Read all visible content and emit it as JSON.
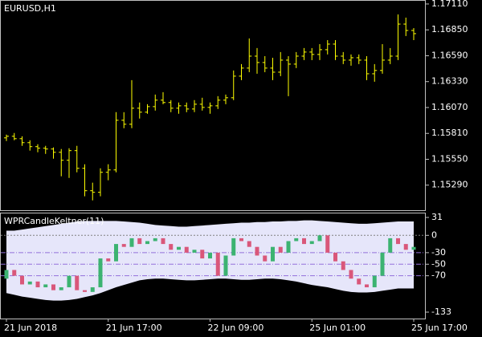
{
  "chart_data": [
    {
      "type": "ohlc",
      "title": "EURUSD,H1",
      "color": "#ffff00",
      "categories": [
        "21 Jun 2018",
        null,
        null,
        null,
        null,
        null,
        null,
        null,
        null,
        null,
        null,
        null,
        null,
        "21 Jun 17:00",
        null,
        null,
        null,
        null,
        null,
        null,
        null,
        null,
        null,
        null,
        null,
        null,
        "22 Jun 09:00",
        null,
        null,
        null,
        null,
        null,
        null,
        null,
        null,
        null,
        null,
        null,
        null,
        "25 Jun 01:00",
        null,
        null,
        null,
        null,
        null,
        null,
        null,
        null,
        null,
        null,
        null,
        null,
        "25 Jun 17:00"
      ],
      "open": [
        1.15765,
        1.15781,
        1.15757,
        1.15717,
        1.15677,
        1.15661,
        1.15653,
        1.1562,
        1.1554,
        1.15637,
        1.15459,
        1.15234,
        1.15218,
        1.15419,
        1.15443,
        1.15942,
        1.15902,
        1.16063,
        1.16023,
        1.16079,
        1.16144,
        1.1612,
        1.16063,
        1.16087,
        1.16055,
        1.16103,
        1.16071,
        1.16087,
        1.16144,
        1.16168,
        1.16385,
        1.16466,
        1.16586,
        1.16522,
        1.16466,
        1.16425,
        1.16546,
        1.16506,
        1.16586,
        1.16627,
        1.16603,
        1.16651,
        1.16707,
        1.16586,
        1.16546,
        1.1657,
        1.16546,
        1.16409,
        1.16442,
        1.16546,
        1.16586,
        1.16908,
        1.16844
      ],
      "high": [
        1.15798,
        1.15814,
        1.15781,
        1.15741,
        1.15701,
        1.15685,
        1.15669,
        1.15653,
        1.15661,
        1.15685,
        1.155,
        1.15315,
        1.15459,
        1.155,
        1.16023,
        1.16023,
        1.16345,
        1.1612,
        1.16103,
        1.162,
        1.16224,
        1.16144,
        1.1612,
        1.1612,
        1.16144,
        1.16168,
        1.1612,
        1.16184,
        1.162,
        1.16442,
        1.16506,
        1.16764,
        1.16667,
        1.16586,
        1.1657,
        1.16627,
        1.16586,
        1.16627,
        1.16667,
        1.16667,
        1.16707,
        1.16747,
        1.16747,
        1.16627,
        1.16603,
        1.16603,
        1.16586,
        1.16506,
        1.16707,
        1.16667,
        1.17005,
        1.16973,
        1.16868
      ],
      "low": [
        1.15733,
        1.15741,
        1.15685,
        1.15637,
        1.1562,
        1.15604,
        1.15556,
        1.15379,
        1.15363,
        1.15419,
        1.15178,
        1.15137,
        1.15178,
        1.15339,
        1.15419,
        1.15862,
        1.15862,
        1.15959,
        1.16007,
        1.16039,
        1.16103,
        1.16023,
        1.16007,
        1.16023,
        1.16023,
        1.16039,
        1.16007,
        1.16055,
        1.16103,
        1.16144,
        1.16345,
        1.16425,
        1.16409,
        1.16425,
        1.16345,
        1.16385,
        1.16184,
        1.16466,
        1.16546,
        1.16546,
        1.16546,
        1.16603,
        1.16546,
        1.16506,
        1.1649,
        1.16506,
        1.16345,
        1.16329,
        1.16409,
        1.16506,
        1.16546,
        1.16788,
        1.16747
      ],
      "close": [
        1.15781,
        1.15757,
        1.15717,
        1.15677,
        1.15661,
        1.15653,
        1.1562,
        1.1554,
        1.15637,
        1.15459,
        1.15234,
        1.15218,
        1.15419,
        1.15443,
        1.15942,
        1.15902,
        1.16063,
        1.16023,
        1.16079,
        1.16144,
        1.1612,
        1.16063,
        1.16087,
        1.16055,
        1.16103,
        1.16071,
        1.16087,
        1.16144,
        1.16168,
        1.16385,
        1.16466,
        1.16586,
        1.16522,
        1.16466,
        1.16425,
        1.16546,
        1.16506,
        1.16586,
        1.16627,
        1.16603,
        1.16651,
        1.16707,
        1.16586,
        1.16546,
        1.1657,
        1.16546,
        1.16409,
        1.16442,
        1.16546,
        1.16586,
        1.16908,
        1.16844,
        1.16812
      ],
      "ylim": [
        1.1503,
        1.1715
      ],
      "yticks": [
        {
          "value": 1.1711,
          "label": "1.17110"
        },
        {
          "value": 1.1685,
          "label": "1.16850"
        },
        {
          "value": 1.1659,
          "label": "1.16590"
        },
        {
          "value": 1.1633,
          "label": "1.16330"
        },
        {
          "value": 1.1607,
          "label": "1.16070"
        },
        {
          "value": 1.1581,
          "label": "1.15810"
        },
        {
          "value": 1.1555,
          "label": "1.15550"
        },
        {
          "value": 1.1529,
          "label": "1.15290"
        }
      ]
    },
    {
      "type": "candlestick",
      "title": "WPRCandleKeltner(11)",
      "up_color": "#3cb371",
      "down_color": "#d9577a",
      "band_color": "#e6e6fa",
      "open": [
        -75,
        -60,
        -70,
        -85,
        -80,
        -90,
        -85,
        -95,
        -90,
        -70,
        -95,
        -98,
        -90,
        -40,
        -45,
        -15,
        -20,
        -5,
        -15,
        -10,
        -5,
        -15,
        -25,
        -20,
        -30,
        -25,
        -40,
        -30,
        -70,
        -35,
        -5,
        -10,
        -20,
        -35,
        -45,
        -20,
        -30,
        -10,
        -5,
        -15,
        -10,
        0,
        -30,
        -45,
        -60,
        -75,
        -85,
        -90,
        -70,
        -30,
        -5,
        -15,
        -25
      ],
      "close": [
        -60,
        -70,
        -85,
        -80,
        -90,
        -85,
        -95,
        -90,
        -70,
        -95,
        -98,
        -90,
        -40,
        -45,
        -15,
        -20,
        -5,
        -15,
        -10,
        -5,
        -15,
        -25,
        -20,
        -30,
        -25,
        -40,
        -30,
        -70,
        -35,
        -5,
        -10,
        -20,
        -35,
        -45,
        -20,
        -30,
        -10,
        -5,
        -15,
        -10,
        0,
        -30,
        -45,
        -60,
        -75,
        -85,
        -90,
        -70,
        -30,
        -5,
        -15,
        -25,
        -20
      ],
      "band_upper": [
        8,
        8,
        10,
        12,
        14,
        16,
        18,
        20,
        22,
        24,
        25,
        25,
        25,
        25,
        25,
        24,
        23,
        22,
        20,
        18,
        17,
        16,
        15,
        15,
        16,
        17,
        18,
        19,
        20,
        21,
        22,
        22,
        23,
        23,
        24,
        24,
        25,
        25,
        26,
        26,
        25,
        24,
        23,
        22,
        21,
        20,
        20,
        21,
        22,
        23,
        24,
        24,
        24
      ],
      "band_lower": [
        -100,
        -103,
        -106,
        -108,
        -110,
        -112,
        -113,
        -113,
        -112,
        -110,
        -107,
        -104,
        -100,
        -95,
        -90,
        -86,
        -82,
        -78,
        -76,
        -75,
        -75,
        -76,
        -77,
        -78,
        -78,
        -77,
        -76,
        -75,
        -75,
        -76,
        -77,
        -77,
        -76,
        -75,
        -75,
        -76,
        -78,
        -80,
        -83,
        -86,
        -88,
        -90,
        -93,
        -96,
        -98,
        -99,
        -99,
        -98,
        -96,
        -94,
        -92,
        -92,
        -92
      ],
      "levels": [
        0,
        -30,
        -50,
        -70
      ],
      "zero_level_color": "#808080",
      "level_color": "#9370db",
      "ylim": [
        -133,
        31
      ],
      "yticks": [
        31,
        0,
        -30,
        -50,
        -70,
        -133
      ]
    }
  ]
}
